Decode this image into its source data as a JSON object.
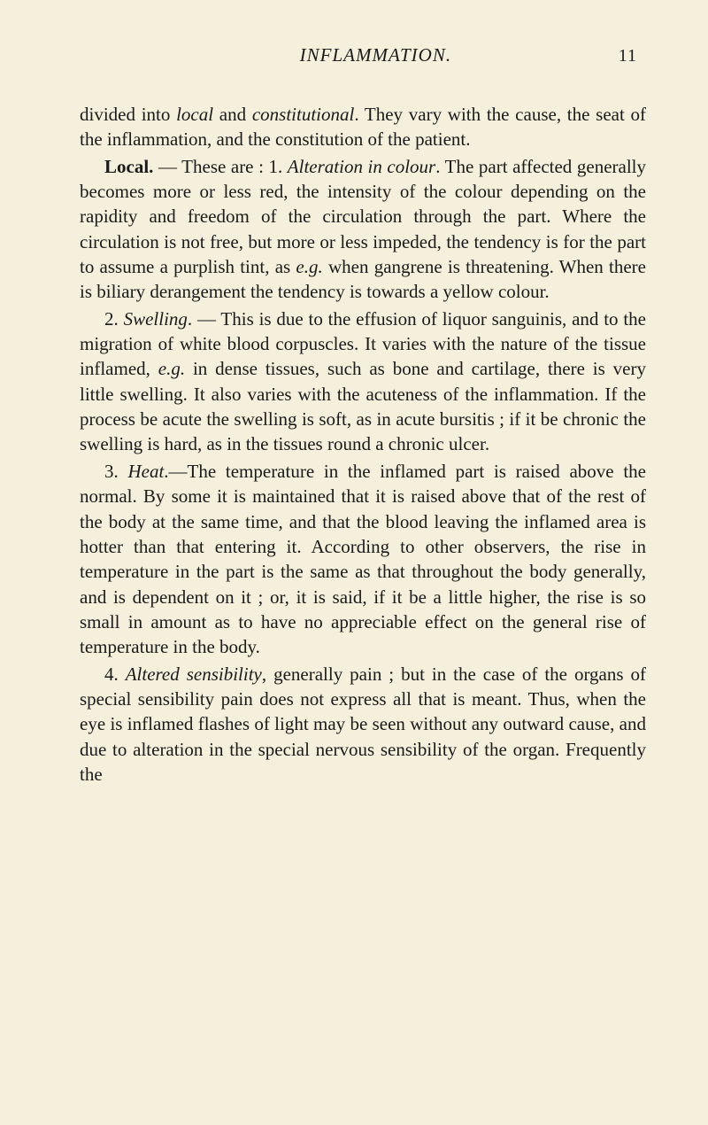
{
  "header": {
    "title": "INFLAMMATION.",
    "page_number": "11"
  },
  "paragraphs": {
    "p1_a": "divided into ",
    "p1_local": "local",
    "p1_b": " and ",
    "p1_constitutional": "constitutional",
    "p1_c": ". They vary with the cause, the seat of the inflammation, and the con­stitution of the patient.",
    "p2_local_bold": "Local.",
    "p2_a": " — These are : 1. ",
    "p2_alteration": "Alteration in colour",
    "p2_b": ". The part affected generally becomes more or less red, the intensity of the colour depending on the rapidity and freedom of the circulation through the part. Where the circulation is not free, but more or less impeded, the tendency is for the part to assume a purplish tint, as ",
    "p2_eg": "e.g.",
    "p2_c": " when gangrene is threatening. When there is biliary derangement the tendency is towards a yellow colour.",
    "p3_a": "2. ",
    "p3_swelling": "Swelling",
    "p3_b": ". — This is due to the effusion of liquor sanguinis, and to the migration of white blood corpuscles. It varies with the nature of the tissue inflamed, ",
    "p3_eg": "e.g.",
    "p3_c": " in dense tissues, such as bone and car­tilage, there is very little swelling. It also varies with the acuteness of the inflammation. If the pro­cess be acute the swelling is soft, as in acute bur­sitis ; if it be chronic the swelling is hard, as in the tissues round a chronic ulcer.",
    "p4_a": "3. ",
    "p4_heat": "Heat",
    "p4_b": ".—The temperature in the inflamed part is raised above the normal. By some it is maintained that it is raised above that of the rest of the body at the same time, and that the blood leaving the inflamed area is hotter than that entering it. According to other observers, the rise in temperature in the part is the same as that throughout the body generally, and is dependent on it ; or, it is said, if it be a little higher, the rise is so small in amount as to have no appreciable effect on the general rise of temperature in the body.",
    "p5_a": "4. ",
    "p5_altered": "Altered sensibility",
    "p5_b": ", generally pain ; but in the case of the organs of special sensibility pain does not express all that is meant. Thus, when the eye is inflamed flashes of light may be seen without any outward cause, and due to alteration in the special nervous sensibility of the organ. Frequently the"
  }
}
